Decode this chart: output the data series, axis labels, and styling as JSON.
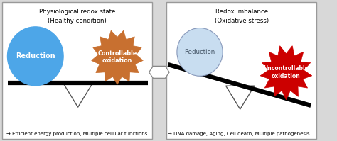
{
  "fig_width": 4.74,
  "fig_height": 1.99,
  "dpi": 100,
  "bg_color": "#d8d8d8",
  "panel_bg": "#ffffff",
  "left_title1": "Physiological redox state",
  "left_title2": "(Healthy condition)",
  "right_title1": "Redox imbalance",
  "right_title2": "(Oxidative stress)",
  "left_caption": "→ Efficient energy production, Multiple cellular functions",
  "right_caption": "→ DNA damage, Aging, Cell death, Multiple pathogenesis",
  "blue_color": "#4da6e8",
  "blue_light_color": "#c8ddf0",
  "orange_color": "#c87030",
  "red_color": "#cc0000",
  "text_dark": "#1a1a2e",
  "reduction_label": "Reduction",
  "controllable_label": "Controllable\noxidation",
  "uncontrollable_label": "Uncontrollable\noxidation"
}
